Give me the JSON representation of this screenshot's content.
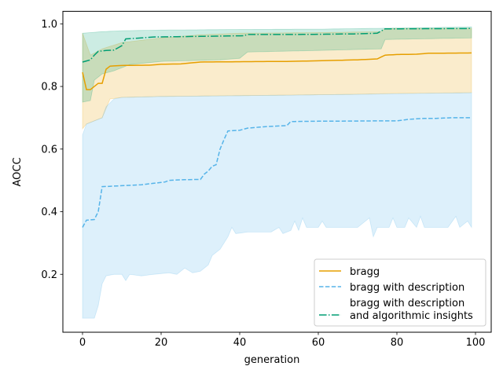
{
  "chart_data": {
    "type": "line",
    "xlabel": "generation",
    "ylabel": "AOCC",
    "xlim": [
      -5,
      104
    ],
    "ylim": [
      0.015,
      1.04
    ],
    "xticks": [
      0,
      20,
      40,
      60,
      80,
      100
    ],
    "yticks": [
      0.2,
      0.4,
      0.6,
      0.8,
      1.0
    ],
    "xtick_labels": [
      "0",
      "20",
      "40",
      "60",
      "80",
      "100"
    ],
    "ytick_labels": [
      "0.2",
      "0.4",
      "0.6",
      "0.8",
      "1.0"
    ],
    "legend_position": "lower-right",
    "series": [
      {
        "name": "bragg",
        "color": "#E69F00",
        "dash": "solid",
        "mean": [
          [
            0,
            0.845
          ],
          [
            1,
            0.79
          ],
          [
            2,
            0.79
          ],
          [
            3,
            0.8
          ],
          [
            4,
            0.81
          ],
          [
            5,
            0.81
          ],
          [
            6,
            0.855
          ],
          [
            7,
            0.865
          ],
          [
            10,
            0.867
          ],
          [
            17,
            0.868
          ],
          [
            20,
            0.871
          ],
          [
            25,
            0.872
          ],
          [
            30,
            0.878
          ],
          [
            40,
            0.879
          ],
          [
            52,
            0.88
          ],
          [
            60,
            0.882
          ],
          [
            70,
            0.885
          ],
          [
            75,
            0.888
          ],
          [
            77,
            0.9
          ],
          [
            80,
            0.902
          ],
          [
            85,
            0.903
          ],
          [
            88,
            0.906
          ],
          [
            99,
            0.907
          ]
        ],
        "band_upper": [
          [
            0,
            0.97
          ],
          [
            2,
            0.9
          ],
          [
            5,
            0.92
          ],
          [
            10,
            0.94
          ],
          [
            20,
            0.955
          ],
          [
            30,
            0.965
          ],
          [
            40,
            0.97
          ],
          [
            60,
            0.972
          ],
          [
            76,
            0.975
          ],
          [
            77,
            0.985
          ],
          [
            99,
            0.985
          ]
        ],
        "band_lower": [
          [
            0,
            0.665
          ],
          [
            1,
            0.68
          ],
          [
            3,
            0.69
          ],
          [
            5,
            0.7
          ],
          [
            7,
            0.76
          ],
          [
            10,
            0.765
          ],
          [
            20,
            0.768
          ],
          [
            35,
            0.77
          ],
          [
            50,
            0.772
          ],
          [
            70,
            0.775
          ],
          [
            80,
            0.778
          ],
          [
            99,
            0.78
          ]
        ]
      },
      {
        "name": "bragg with description",
        "color": "#56B4E9",
        "dash": "dashed",
        "mean": [
          [
            0,
            0.35
          ],
          [
            1,
            0.373
          ],
          [
            3,
            0.375
          ],
          [
            4,
            0.4
          ],
          [
            5,
            0.48
          ],
          [
            10,
            0.483
          ],
          [
            15,
            0.486
          ],
          [
            19,
            0.492
          ],
          [
            21,
            0.495
          ],
          [
            22,
            0.5
          ],
          [
            25,
            0.502
          ],
          [
            30,
            0.503
          ],
          [
            31,
            0.52
          ],
          [
            32,
            0.53
          ],
          [
            33,
            0.545
          ],
          [
            34,
            0.55
          ],
          [
            35,
            0.6
          ],
          [
            36,
            0.63
          ],
          [
            37,
            0.658
          ],
          [
            40,
            0.66
          ],
          [
            42,
            0.667
          ],
          [
            47,
            0.672
          ],
          [
            52,
            0.675
          ],
          [
            53,
            0.688
          ],
          [
            60,
            0.689
          ],
          [
            75,
            0.69
          ],
          [
            80,
            0.69
          ],
          [
            83,
            0.695
          ],
          [
            87,
            0.698
          ],
          [
            90,
            0.698
          ],
          [
            94,
            0.7
          ],
          [
            99,
            0.7
          ]
        ],
        "band_upper": [
          [
            0,
            0.645
          ],
          [
            1,
            0.68
          ],
          [
            3,
            0.69
          ],
          [
            5,
            0.7
          ],
          [
            6,
            0.735
          ],
          [
            8,
            0.76
          ],
          [
            10,
            0.765
          ],
          [
            20,
            0.768
          ],
          [
            35,
            0.77
          ],
          [
            50,
            0.772
          ],
          [
            70,
            0.775
          ],
          [
            99,
            0.78
          ]
        ],
        "band_lower": [
          [
            0,
            0.06
          ],
          [
            3,
            0.06
          ],
          [
            4,
            0.1
          ],
          [
            5,
            0.17
          ],
          [
            6,
            0.195
          ],
          [
            8,
            0.2
          ],
          [
            10,
            0.2
          ],
          [
            11,
            0.18
          ],
          [
            12,
            0.2
          ],
          [
            15,
            0.195
          ],
          [
            18,
            0.2
          ],
          [
            22,
            0.205
          ],
          [
            24,
            0.2
          ],
          [
            26,
            0.22
          ],
          [
            28,
            0.205
          ],
          [
            30,
            0.21
          ],
          [
            32,
            0.23
          ],
          [
            33,
            0.26
          ],
          [
            35,
            0.28
          ],
          [
            37,
            0.32
          ],
          [
            38,
            0.35
          ],
          [
            39,
            0.33
          ],
          [
            42,
            0.335
          ],
          [
            48,
            0.335
          ],
          [
            50,
            0.35
          ],
          [
            51,
            0.33
          ],
          [
            53,
            0.34
          ],
          [
            54,
            0.37
          ],
          [
            55,
            0.34
          ],
          [
            56,
            0.38
          ],
          [
            57,
            0.35
          ],
          [
            60,
            0.35
          ],
          [
            61,
            0.37
          ],
          [
            62,
            0.35
          ],
          [
            70,
            0.35
          ],
          [
            73,
            0.38
          ],
          [
            74,
            0.32
          ],
          [
            75,
            0.35
          ],
          [
            78,
            0.35
          ],
          [
            79,
            0.38
          ],
          [
            80,
            0.35
          ],
          [
            82,
            0.35
          ],
          [
            83,
            0.38
          ],
          [
            85,
            0.35
          ],
          [
            86,
            0.385
          ],
          [
            87,
            0.35
          ],
          [
            93,
            0.35
          ],
          [
            95,
            0.385
          ],
          [
            96,
            0.35
          ],
          [
            98,
            0.37
          ],
          [
            99,
            0.35
          ]
        ]
      },
      {
        "name": "bragg with description\nand algorithmic insights",
        "color": "#009E73",
        "dash": "dashdot",
        "mean": [
          [
            0,
            0.878
          ],
          [
            2,
            0.885
          ],
          [
            3,
            0.9
          ],
          [
            4,
            0.912
          ],
          [
            6,
            0.915
          ],
          [
            8,
            0.916
          ],
          [
            10,
            0.93
          ],
          [
            11,
            0.952
          ],
          [
            15,
            0.955
          ],
          [
            18,
            0.958
          ],
          [
            30,
            0.96
          ],
          [
            41,
            0.962
          ],
          [
            42,
            0.966
          ],
          [
            55,
            0.966
          ],
          [
            70,
            0.968
          ],
          [
            75,
            0.97
          ],
          [
            77,
            0.984
          ],
          [
            99,
            0.985
          ]
        ],
        "band_upper": [
          [
            0,
            0.97
          ],
          [
            5,
            0.975
          ],
          [
            10,
            0.978
          ],
          [
            20,
            0.98
          ],
          [
            40,
            0.982
          ],
          [
            60,
            0.983
          ],
          [
            77,
            0.986
          ],
          [
            99,
            0.99
          ]
        ],
        "band_lower": [
          [
            0,
            0.75
          ],
          [
            2,
            0.755
          ],
          [
            3,
            0.82
          ],
          [
            5,
            0.84
          ],
          [
            8,
            0.85
          ],
          [
            10,
            0.86
          ],
          [
            12,
            0.87
          ],
          [
            20,
            0.88
          ],
          [
            35,
            0.885
          ],
          [
            40,
            0.89
          ],
          [
            42,
            0.91
          ],
          [
            60,
            0.915
          ],
          [
            76,
            0.92
          ],
          [
            77,
            0.95
          ],
          [
            99,
            0.955
          ]
        ]
      }
    ]
  }
}
